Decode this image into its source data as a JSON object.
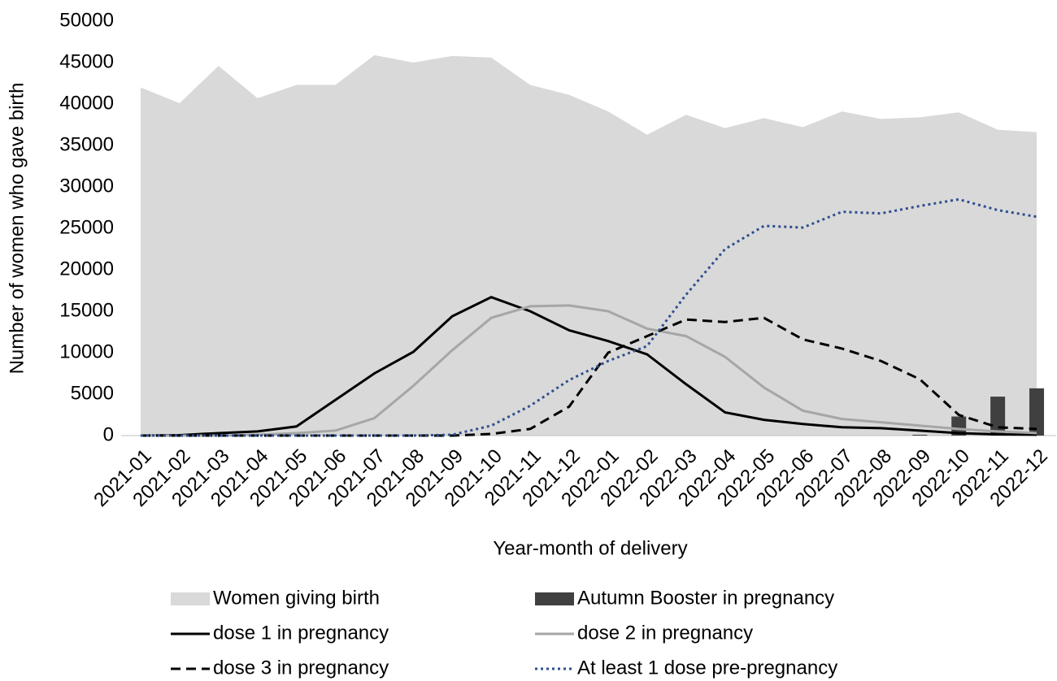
{
  "chart_data": {
    "type": "line",
    "y_label": "Number of women who gave birth",
    "x_label": "Year-month of delivery",
    "categories": [
      "2021-01",
      "2021-02",
      "2021-03",
      "2021-04",
      "2021-05",
      "2021-06",
      "2021-07",
      "2021-08",
      "2021-09",
      "2021-10",
      "2021-11",
      "2021-12",
      "2022-01",
      "2022-02",
      "2022-03",
      "2022-04",
      "2022-05",
      "2022-06",
      "2022-07",
      "2022-08",
      "2022-09",
      "2022-10",
      "2022-11",
      "2022-12"
    ],
    "ylim": [
      0,
      50000
    ],
    "yticks": [
      0,
      5000,
      10000,
      15000,
      20000,
      25000,
      30000,
      35000,
      40000,
      45000,
      50000
    ],
    "series": [
      {
        "name": "Women giving birth",
        "kind": "area",
        "color": "#d9d9d9",
        "values": [
          42000,
          40100,
          44600,
          40700,
          42300,
          42300,
          45900,
          45000,
          45800,
          45600,
          42300,
          41100,
          39100,
          36300,
          38700,
          37100,
          38300,
          37200,
          39100,
          38200,
          38400,
          39000,
          36900,
          36600
        ]
      },
      {
        "name": "Autumn Booster in pregnancy",
        "kind": "bar",
        "color": "#404040",
        "values": [
          0,
          0,
          0,
          0,
          0,
          0,
          0,
          0,
          0,
          0,
          0,
          0,
          0,
          0,
          0,
          0,
          0,
          0,
          0,
          0,
          100,
          2300,
          4700,
          5700
        ]
      },
      {
        "name": "dose 1 in pregnancy",
        "kind": "line",
        "dash": "solid",
        "color": "#000000",
        "values": [
          0,
          50,
          300,
          500,
          1100,
          4300,
          7500,
          10100,
          14400,
          16700,
          15000,
          12700,
          11400,
          9800,
          6200,
          2800,
          1900,
          1400,
          1000,
          900,
          600,
          300,
          150,
          100
        ]
      },
      {
        "name": "dose 2 in pregnancy",
        "kind": "line",
        "dash": "solid",
        "color": "#a6a6a6",
        "values": [
          0,
          0,
          0,
          100,
          300,
          600,
          2100,
          6000,
          10300,
          14200,
          15600,
          15700,
          15000,
          12900,
          12000,
          9500,
          5800,
          3000,
          2000,
          1600,
          1200,
          800,
          500,
          300
        ]
      },
      {
        "name": "dose 3 in pregnancy",
        "kind": "line",
        "dash": "dashed",
        "color": "#000000",
        "values": [
          0,
          0,
          0,
          0,
          0,
          0,
          0,
          0,
          0,
          200,
          800,
          3500,
          10000,
          12000,
          14000,
          13700,
          14200,
          11600,
          10500,
          9000,
          6800,
          2500,
          1000,
          800
        ]
      },
      {
        "name": "At least 1 dose pre-pregnancy",
        "kind": "line",
        "dash": "dotted",
        "color": "#2f4f8f",
        "values": [
          0,
          0,
          0,
          0,
          0,
          0,
          0,
          0,
          100,
          1200,
          3600,
          6700,
          9000,
          10800,
          17000,
          22500,
          25300,
          25100,
          27000,
          26800,
          27700,
          28500,
          27200,
          26400
        ]
      }
    ]
  }
}
